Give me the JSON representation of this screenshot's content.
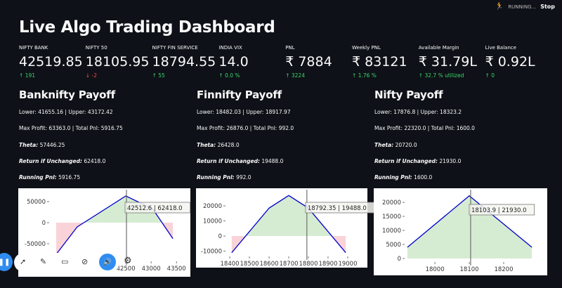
{
  "status": {
    "text": "RUNNING...",
    "stop_label": "Stop",
    "icon": "running-man-icon"
  },
  "title": "Live Algo Trading Dashboard",
  "metrics": [
    {
      "label": "NIFTY BANK",
      "value": "42519.85",
      "delta": "191",
      "dir": "up"
    },
    {
      "label": "NIFTY 50",
      "value": "18105.95",
      "delta": "-2",
      "dir": "down"
    },
    {
      "label": "NIFTY FIN SERVICE",
      "value": "18794.55",
      "delta": "55",
      "dir": "up"
    },
    {
      "label": "INDIA VIX",
      "value": "14.0",
      "delta": "0.0 %",
      "dir": "up"
    },
    {
      "label": "PNL",
      "value": "₹ 7884",
      "delta": "3224",
      "dir": "up"
    },
    {
      "label": "Weekly PNL",
      "value": "₹ 83121",
      "delta": "1.76 %",
      "dir": "up"
    },
    {
      "label": "Available Margin",
      "value": "₹ 31.79L",
      "delta": "32.7 % utilized",
      "dir": "up"
    },
    {
      "label": "Live Balance",
      "value": "₹ 0.92L",
      "delta": "0",
      "dir": "up"
    }
  ],
  "sections": [
    {
      "title": "Banknifty Payoff",
      "range": "Lower: 41655.16 | Upper: 43172.42",
      "profit": "Max Profit: 63363.0 | Total Pnl: 5916.75",
      "theta_label": "Theta:",
      "theta": " 57446.25",
      "riu_label": "Return if Unchanged:",
      "riu": " 62418.0",
      "rp_label": "Running Pnl:",
      "rp": " 5916.75"
    },
    {
      "title": "Finnifty Payoff",
      "range": "Lower: 18482.03 | Upper: 18917.97",
      "profit": "Max Profit: 26876.0 | Total Pnl: 992.0",
      "theta_label": "Theta:",
      "theta": " 26428.0",
      "riu_label": "Return if Unchanged:",
      "riu": " 19488.0",
      "rp_label": "Running Pnl:",
      "rp": " 992.0"
    },
    {
      "title": "Nifty Payoff",
      "range": "Lower: 17876.8 | Upper: 18323.2",
      "profit": "Max Profit: 22320.0 | Total Pnl: 1600.0",
      "theta_label": "Theta:",
      "theta": " 20720.0",
      "riu_label": "Return if Unchanged:",
      "riu": " 21930.0",
      "rp_label": "Running Pnl:",
      "rp": " 1600.0"
    }
  ],
  "chart_data": [
    {
      "type": "line",
      "name": "banknifty-payoff",
      "x": [
        41125,
        41540,
        42500,
        43030,
        43430
      ],
      "y": [
        -75000,
        -10000,
        63363,
        33000,
        -38000
      ],
      "xlim": [
        41000,
        43650
      ],
      "ylim": [
        -90000,
        75000
      ],
      "xticks": [
        41000,
        41500,
        42000,
        42500,
        43000,
        43500
      ],
      "yticks": [
        -50000,
        0,
        50000
      ],
      "marker": {
        "x": 42512.6,
        "label": "42512.6 | 62418.0"
      },
      "line_color": "#0000cc",
      "profit_fill": "#d6ecd2",
      "loss_fill": "#f9d3d8"
    },
    {
      "type": "line",
      "name": "finnifty-payoff",
      "x": [
        18410,
        18600,
        18700,
        18800,
        18990
      ],
      "y": [
        -11000,
        18500,
        26876,
        18500,
        -11000
      ],
      "xlim": [
        18382,
        19018
      ],
      "ylim": [
        -13000,
        29800
      ],
      "xticks": [
        18400,
        18500,
        18600,
        18700,
        18800,
        18900,
        19000
      ],
      "yticks": [
        -10000,
        0,
        10000,
        20000
      ],
      "marker": {
        "x": 18792.35,
        "label": "18792.35 | 19488.0"
      },
      "line_color": "#0000cc",
      "profit_fill": "#d6ecd2",
      "loss_fill": "#f9d3d8"
    },
    {
      "type": "line",
      "name": "nifty-payoff",
      "x": [
        17920,
        18100,
        18282
      ],
      "y": [
        4000,
        22320,
        4000
      ],
      "xlim": [
        17914,
        18292
      ],
      "ylim": [
        -1000,
        23250
      ],
      "xticks": [
        18000,
        18100,
        18200
      ],
      "yticks": [
        0,
        5000,
        10000,
        15000,
        20000
      ],
      "marker": {
        "x": 18103.9,
        "label": "18103.9 | 21930.0"
      },
      "line_color": "#0000cc",
      "profit_fill": "#d6ecd2",
      "loss_fill": "#f9d3d8"
    }
  ],
  "toolbar": {
    "icons": [
      "pause-icon",
      "cursor-icon",
      "pencil-icon",
      "video-icon",
      "mic-off-icon",
      "speaker-icon",
      "gear-icon"
    ]
  }
}
